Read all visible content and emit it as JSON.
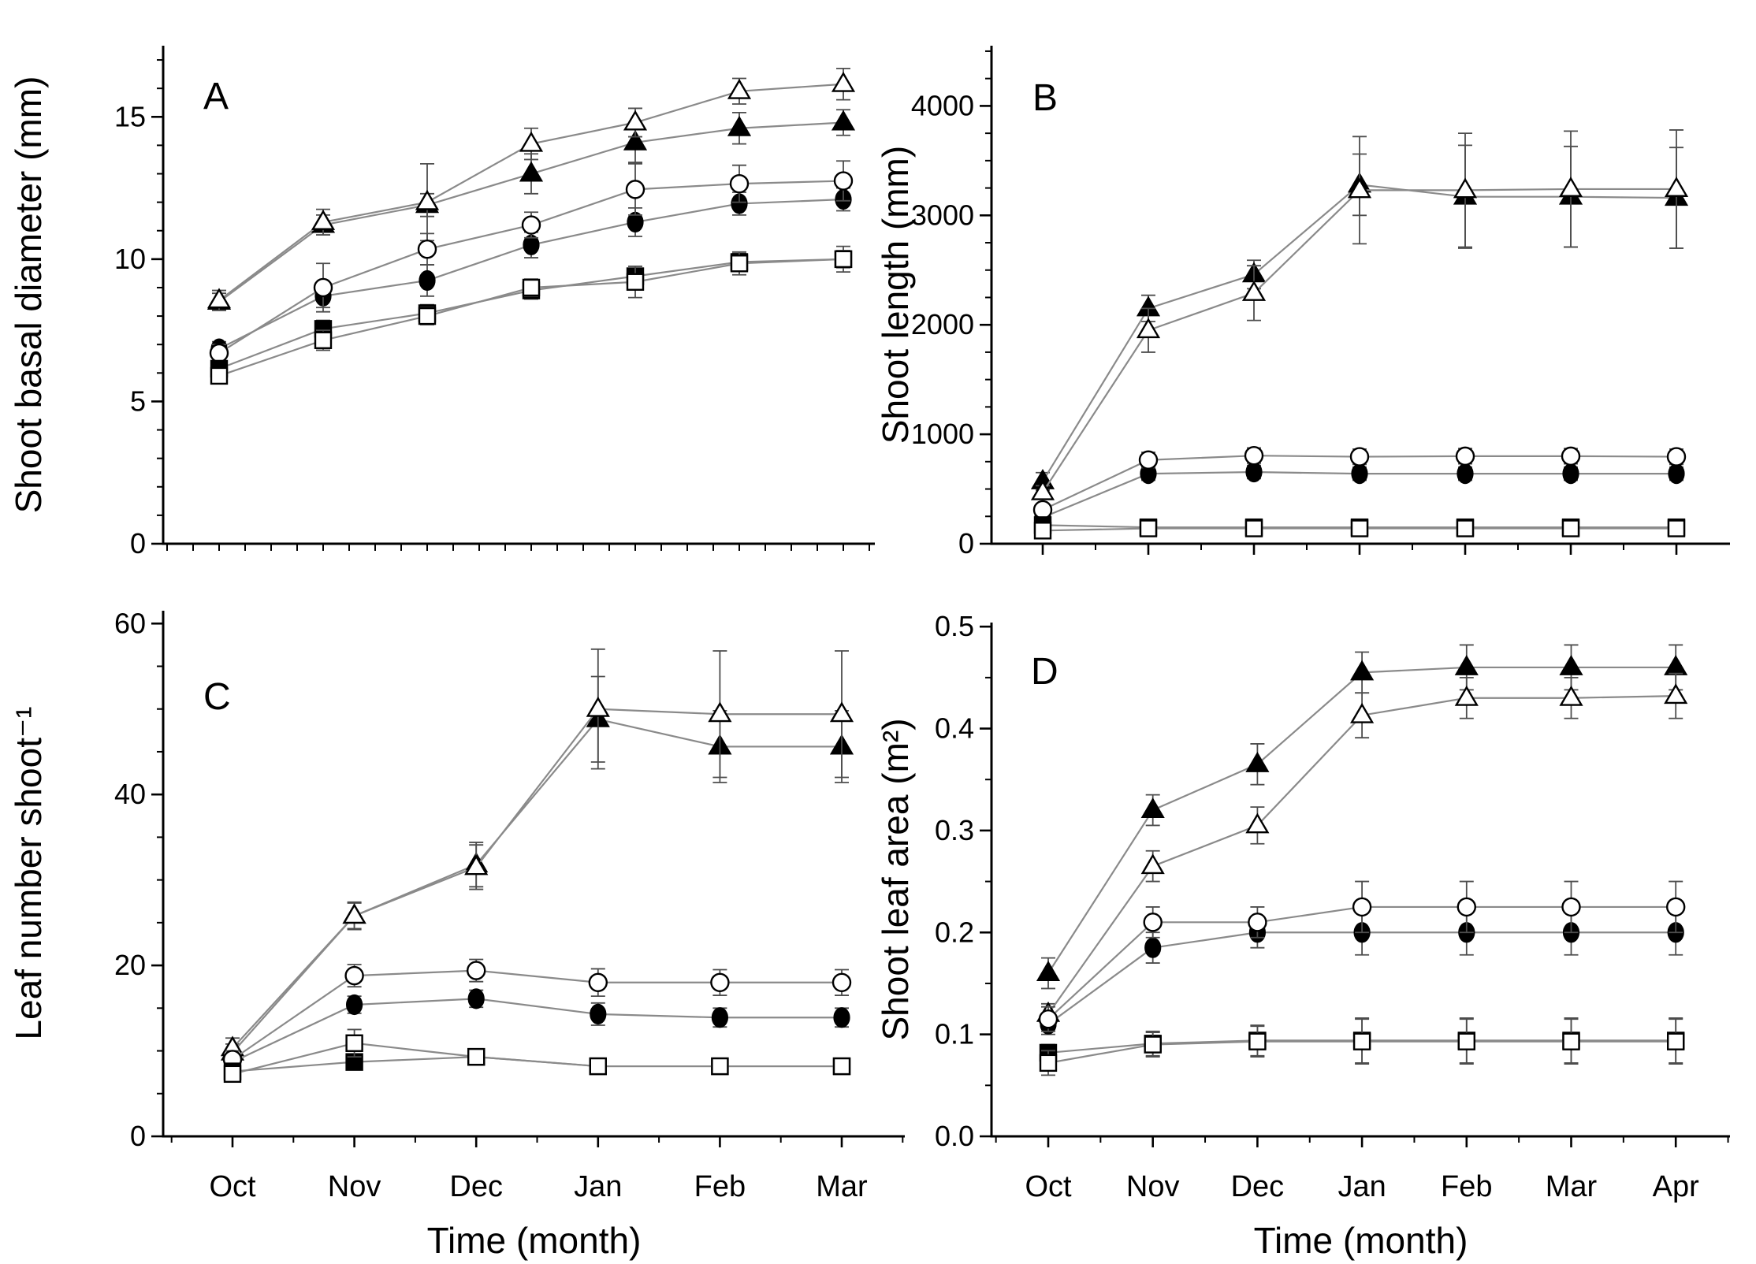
{
  "figure": {
    "background": "#ffffff",
    "axis_color": "#000000",
    "series_line_color": "#8a8a8a",
    "error_bar_color": "#4d4d4d",
    "marker_color": "#000000",
    "x_axis_title": "Time (month)"
  },
  "chart_data": [
    {
      "id": "A",
      "type": "line",
      "panel_label": "A",
      "ylabel": "Shoot basal diameter (mm)",
      "ylim": [
        0,
        17.5
      ],
      "y_major": [
        {
          "v": 0,
          "label": "0"
        },
        {
          "v": 5,
          "label": "5"
        },
        {
          "v": 10,
          "label": "10"
        },
        {
          "v": 15,
          "label": "15"
        }
      ],
      "y_minor_step": 1,
      "x_tick_labels": [],
      "xlabel": "",
      "n_points": 7,
      "legend": "none",
      "grid": false,
      "series": [
        {
          "name": "filled-triangle",
          "marker": "triangle",
          "fill": "filled",
          "values": [
            8.5,
            11.2,
            11.9,
            13.0,
            14.1,
            14.6,
            14.8
          ],
          "errors": [
            0.3,
            0.35,
            0.4,
            0.7,
            0.7,
            0.55,
            0.45
          ]
        },
        {
          "name": "open-triangle",
          "marker": "triangle",
          "fill": "open",
          "values": [
            8.55,
            11.3,
            12.0,
            14.05,
            14.8,
            15.9,
            16.15
          ],
          "errors": [
            0.35,
            0.45,
            1.35,
            0.55,
            0.5,
            0.45,
            0.55
          ]
        },
        {
          "name": "filled-circle",
          "marker": "circle",
          "fill": "filled",
          "values": [
            6.85,
            8.7,
            9.25,
            10.5,
            11.3,
            11.95,
            12.1
          ],
          "errors": [
            0.25,
            0.4,
            0.55,
            0.45,
            0.5,
            0.4,
            0.4
          ]
        },
        {
          "name": "open-circle",
          "marker": "circle",
          "fill": "open",
          "values": [
            6.7,
            9.0,
            10.35,
            11.2,
            12.45,
            12.65,
            12.75
          ],
          "errors": [
            0.3,
            0.85,
            0.55,
            0.45,
            0.9,
            0.65,
            0.7
          ]
        },
        {
          "name": "filled-square",
          "marker": "square",
          "fill": "filled",
          "values": [
            6.15,
            7.55,
            8.1,
            8.9,
            9.4,
            9.9,
            10.0
          ],
          "errors": [
            0.2,
            0.3,
            0.3,
            0.3,
            0.35,
            0.3,
            0.3
          ]
        },
        {
          "name": "open-square",
          "marker": "square",
          "fill": "open",
          "values": [
            5.9,
            7.15,
            8.0,
            9.0,
            9.2,
            9.85,
            10.0
          ],
          "errors": [
            0.2,
            0.35,
            0.3,
            0.3,
            0.55,
            0.4,
            0.45
          ]
        }
      ]
    },
    {
      "id": "B",
      "type": "line",
      "panel_label": "B",
      "ylabel": "Shoot length (mm)",
      "ylim": [
        0,
        4550
      ],
      "y_major": [
        {
          "v": 0,
          "label": "0"
        },
        {
          "v": 1000,
          "label": "1000"
        },
        {
          "v": 2000,
          "label": "2000"
        },
        {
          "v": 3000,
          "label": "3000"
        },
        {
          "v": 4000,
          "label": "4000"
        }
      ],
      "y_minor_step": 250,
      "x_tick_labels": [],
      "xlabel": "",
      "n_points": 7,
      "legend": "none",
      "grid": false,
      "series": [
        {
          "name": "filled-triangle",
          "marker": "triangle",
          "fill": "filled",
          "values": [
            570,
            2150,
            2460,
            3280,
            3170,
            3170,
            3160
          ],
          "errors": [
            80,
            120,
            130,
            280,
            470,
            460,
            460
          ]
        },
        {
          "name": "open-triangle",
          "marker": "triangle",
          "fill": "open",
          "values": [
            470,
            1950,
            2290,
            3230,
            3230,
            3240,
            3240
          ],
          "errors": [
            60,
            200,
            250,
            490,
            520,
            530,
            540
          ]
        },
        {
          "name": "filled-circle",
          "marker": "circle",
          "fill": "filled",
          "values": [
            240,
            640,
            655,
            640,
            640,
            640,
            640
          ],
          "errors": [
            40,
            60,
            60,
            60,
            60,
            60,
            60
          ]
        },
        {
          "name": "open-circle",
          "marker": "circle",
          "fill": "open",
          "values": [
            310,
            765,
            805,
            795,
            800,
            800,
            795
          ],
          "errors": [
            50,
            70,
            70,
            70,
            70,
            70,
            70
          ]
        },
        {
          "name": "filled-square",
          "marker": "square",
          "fill": "filled",
          "values": [
            170,
            150,
            150,
            150,
            150,
            150,
            150
          ],
          "errors": [
            25,
            20,
            20,
            20,
            20,
            20,
            20
          ]
        },
        {
          "name": "open-square",
          "marker": "square",
          "fill": "open",
          "values": [
            120,
            140,
            140,
            140,
            140,
            140,
            140
          ],
          "errors": [
            20,
            20,
            20,
            20,
            20,
            20,
            20
          ]
        }
      ]
    },
    {
      "id": "C",
      "type": "line",
      "panel_label": "C",
      "ylabel": "Leaf number shoot⁻¹",
      "ylim": [
        0,
        61.5
      ],
      "y_major": [
        {
          "v": 0,
          "label": "0"
        },
        {
          "v": 20,
          "label": "20"
        },
        {
          "v": 40,
          "label": "40"
        },
        {
          "v": 60,
          "label": "60"
        }
      ],
      "y_minor_step": 5,
      "x_tick_labels": [
        "Oct",
        "Nov",
        "Dec",
        "Jan",
        "Feb",
        "Mar"
      ],
      "xlabel": "Time (month)",
      "n_points": 6,
      "legend": "none",
      "grid": false,
      "series": [
        {
          "name": "filled-triangle",
          "marker": "triangle",
          "fill": "filled",
          "values": [
            9.8,
            25.8,
            31.8,
            48.8,
            45.6,
            45.6
          ],
          "errors": [
            1.0,
            1.5,
            2.6,
            5.0,
            4.2,
            4.2
          ]
        },
        {
          "name": "open-triangle",
          "marker": "triangle",
          "fill": "open",
          "values": [
            10.3,
            25.8,
            31.5,
            50.0,
            49.4,
            49.4
          ],
          "errors": [
            1.2,
            1.6,
            2.6,
            7.0,
            7.4,
            7.4
          ]
        },
        {
          "name": "filled-circle",
          "marker": "circle",
          "fill": "filled",
          "values": [
            8.7,
            15.4,
            16.1,
            14.3,
            13.9,
            13.9
          ],
          "errors": [
            0.8,
            1.0,
            1.0,
            1.3,
            1.1,
            1.1
          ]
        },
        {
          "name": "open-circle",
          "marker": "circle",
          "fill": "open",
          "values": [
            9.0,
            18.8,
            19.4,
            18.0,
            18.0,
            18.0
          ],
          "errors": [
            1.0,
            1.3,
            1.3,
            1.6,
            1.5,
            1.5
          ]
        },
        {
          "name": "filled-square",
          "marker": "square",
          "fill": "filled",
          "values": [
            7.6,
            8.7,
            9.3,
            8.2,
            8.2,
            8.2
          ],
          "errors": [
            0.7,
            0.8,
            0.8,
            0.6,
            0.6,
            0.6
          ]
        },
        {
          "name": "open-square",
          "marker": "square",
          "fill": "open",
          "values": [
            7.3,
            10.9,
            9.3,
            8.2,
            8.2,
            8.2
          ],
          "errors": [
            0.7,
            1.6,
            0.9,
            0.6,
            0.6,
            0.6
          ]
        }
      ]
    },
    {
      "id": "D",
      "type": "line",
      "panel_label": "D",
      "ylabel": "Shoot leaf area (m²)",
      "ylim": [
        0,
        0.504
      ],
      "y_major": [
        {
          "v": 0,
          "label": "0.0"
        },
        {
          "v": 0.1,
          "label": "0.1"
        },
        {
          "v": 0.2,
          "label": "0.2"
        },
        {
          "v": 0.3,
          "label": "0.3"
        },
        {
          "v": 0.4,
          "label": "0.4"
        },
        {
          "v": 0.5,
          "label": "0.5"
        }
      ],
      "y_minor_step": 0.05,
      "x_tick_labels": [
        "Oct",
        "Nov",
        "Dec",
        "Jan",
        "Feb",
        "Mar",
        "Apr"
      ],
      "xlabel": "Time (month)",
      "n_points": 7,
      "legend": "none",
      "grid": false,
      "series": [
        {
          "name": "filled-triangle",
          "marker": "triangle",
          "fill": "filled",
          "values": [
            0.16,
            0.32,
            0.365,
            0.455,
            0.46,
            0.46,
            0.46
          ],
          "errors": [
            0.015,
            0.015,
            0.02,
            0.02,
            0.022,
            0.022,
            0.022
          ]
        },
        {
          "name": "open-triangle",
          "marker": "triangle",
          "fill": "open",
          "values": [
            0.12,
            0.265,
            0.305,
            0.413,
            0.43,
            0.43,
            0.432
          ],
          "errors": [
            0.01,
            0.015,
            0.018,
            0.022,
            0.02,
            0.02,
            0.022
          ]
        },
        {
          "name": "filled-circle",
          "marker": "circle",
          "fill": "filled",
          "values": [
            0.11,
            0.185,
            0.2,
            0.2,
            0.2,
            0.2,
            0.2
          ],
          "errors": [
            0.01,
            0.015,
            0.015,
            0.022,
            0.022,
            0.022,
            0.022
          ]
        },
        {
          "name": "open-circle",
          "marker": "circle",
          "fill": "open",
          "values": [
            0.115,
            0.21,
            0.21,
            0.225,
            0.225,
            0.225,
            0.225
          ],
          "errors": [
            0.012,
            0.015,
            0.015,
            0.025,
            0.025,
            0.025,
            0.025
          ]
        },
        {
          "name": "filled-square",
          "marker": "square",
          "fill": "filled",
          "values": [
            0.082,
            0.091,
            0.094,
            0.094,
            0.094,
            0.094,
            0.094
          ],
          "errors": [
            0.008,
            0.012,
            0.015,
            0.022,
            0.022,
            0.022,
            0.022
          ]
        },
        {
          "name": "open-square",
          "marker": "square",
          "fill": "open",
          "values": [
            0.072,
            0.09,
            0.093,
            0.093,
            0.093,
            0.093,
            0.093
          ],
          "errors": [
            0.012,
            0.012,
            0.015,
            0.022,
            0.022,
            0.022,
            0.022
          ]
        }
      ]
    }
  ]
}
